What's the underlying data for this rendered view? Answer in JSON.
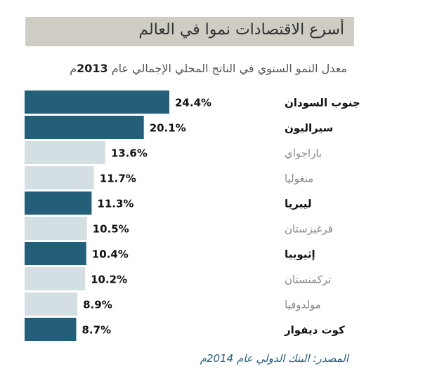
{
  "title": "أسرع الاقتصادات نموا في العالم",
  "subtitle": {
    "text": "معدل النمو السنوي في الناتج المحلي الإجمالي عام ",
    "year": "2013",
    "suffix": "م"
  },
  "source": "المصدر: البنك الدولي عام 2014م",
  "colors": {
    "highlight": "#245f7a",
    "muted": "#d4dfe4",
    "title_bg": "#cfccc3",
    "label_dark": "#111111",
    "label_muted": "#888888"
  },
  "chart_data": {
    "type": "bar",
    "orientation": "horizontal",
    "categories": [
      "جنوب السودان",
      "سيراليون",
      "باراجواي",
      "منغوليا",
      "ليبريا",
      "قرغيزستان",
      "إثيوبيا",
      "تركمنستان",
      "مولدوفيا",
      "كوت ديفوار"
    ],
    "values": [
      24.4,
      20.1,
      13.6,
      11.7,
      11.3,
      10.5,
      10.4,
      10.2,
      8.9,
      8.7
    ],
    "value_labels": [
      "24.4%",
      "20.1%",
      "13.6%",
      "11.7%",
      "11.3%",
      "10.5%",
      "10.4%",
      "10.2%",
      "8.9%",
      "8.7%"
    ],
    "highlighted": [
      true,
      true,
      false,
      false,
      true,
      false,
      true,
      false,
      false,
      true
    ],
    "xlim": [
      0,
      24.4
    ]
  }
}
